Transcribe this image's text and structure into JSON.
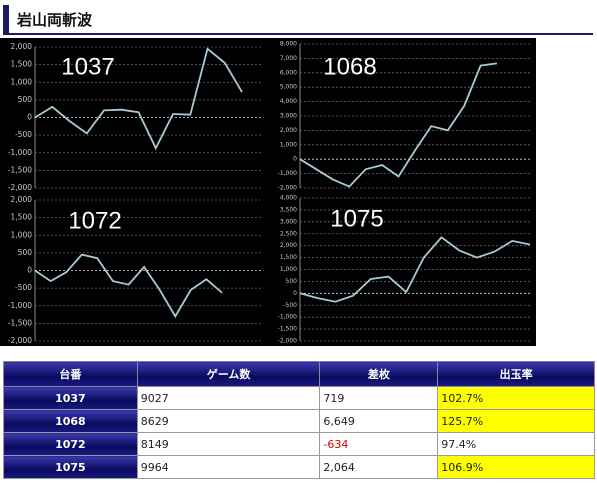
{
  "header": {
    "title": "岩山両斬波"
  },
  "chart_data": [
    {
      "type": "line",
      "title": "1037",
      "color": "#a9c9d6",
      "grid": true,
      "values": [
        0,
        300,
        -100,
        -450,
        200,
        220,
        150,
        -870,
        100,
        80,
        1950,
        1550,
        720
      ],
      "ylim": [
        -2000,
        2000
      ],
      "yticks": [
        {
          "value": 2000,
          "label": "2,000"
        },
        {
          "value": 1500,
          "label": "1,500"
        },
        {
          "value": 1000,
          "label": "1,000"
        },
        500,
        0,
        -500,
        {
          "value": -1000,
          "label": "-1,000"
        },
        {
          "value": -1500,
          "label": "-1,500"
        },
        {
          "value": -2000,
          "label": "-2,000"
        }
      ]
    },
    {
      "type": "line",
      "title": "1068",
      "color": "#a9c9d6",
      "grid": true,
      "values": [
        0,
        -700,
        -1400,
        -1900,
        -700,
        -400,
        -1200,
        600,
        2300,
        2000,
        3700,
        6500,
        6650
      ],
      "ylim": [
        -2000,
        8000
      ],
      "yticks": [
        {
          "value": 8000,
          "label": "8,000"
        },
        {
          "value": 7000,
          "label": "7,000"
        },
        {
          "value": 6000,
          "label": "6,000"
        },
        {
          "value": 5000,
          "label": "5,000"
        },
        {
          "value": 4000,
          "label": "4,000"
        },
        {
          "value": 3000,
          "label": "3,000"
        },
        {
          "value": 2000,
          "label": "2,000"
        },
        {
          "value": 1000,
          "label": "1,000"
        },
        0,
        {
          "value": -1000,
          "label": "-1,000"
        },
        {
          "value": -2000,
          "label": "-2,000"
        }
      ]
    },
    {
      "type": "line",
      "title": "1072",
      "color": "#a9c9d6",
      "grid": true,
      "values": [
        0,
        -300,
        -50,
        450,
        350,
        -300,
        -400,
        100,
        -550,
        -1300,
        -550,
        -250,
        -630
      ],
      "ylim": [
        -2000,
        2000
      ],
      "yticks": [
        {
          "value": 2000,
          "label": "2,000"
        },
        {
          "value": 1500,
          "label": "1,500"
        },
        {
          "value": 1000,
          "label": "1,000"
        },
        500,
        0,
        -500,
        {
          "value": -1000,
          "label": "-1,000"
        },
        {
          "value": -1500,
          "label": "-1,500"
        },
        {
          "value": -2000,
          "label": "-2,000"
        }
      ]
    },
    {
      "type": "line",
      "title": "1075",
      "color": "#a9c9d6",
      "grid": true,
      "values": [
        0,
        -200,
        -350,
        -100,
        600,
        700,
        50,
        1500,
        2350,
        1800,
        1500,
        1750,
        2200,
        2050
      ],
      "ylim": [
        -2000,
        4000
      ],
      "yticks": [
        {
          "value": 4000,
          "label": "4,000"
        },
        {
          "value": 3500,
          "label": "3,500"
        },
        {
          "value": 3000,
          "label": "3,000"
        },
        {
          "value": 2500,
          "label": "2,500"
        },
        {
          "value": 2000,
          "label": "2,000"
        },
        {
          "value": 1500,
          "label": "1,500"
        },
        {
          "value": 1000,
          "label": "1,000"
        },
        500,
        0,
        -500,
        {
          "value": -1000,
          "label": "-1,000"
        },
        {
          "value": -1500,
          "label": "-1,500"
        },
        {
          "value": -2000,
          "label": "-2,000"
        }
      ]
    }
  ],
  "table": {
    "columns": [
      "台番",
      "ゲーム数",
      "差枚",
      "出玉率"
    ],
    "rows": [
      [
        "1037",
        "9027",
        "719",
        "102.7%"
      ],
      [
        "1068",
        "8629",
        "6,649",
        "125.7%"
      ],
      [
        "1072",
        "8149",
        "-634",
        "97.4%"
      ],
      [
        "1075",
        "9964",
        "2,064",
        "106.9%"
      ]
    ]
  }
}
